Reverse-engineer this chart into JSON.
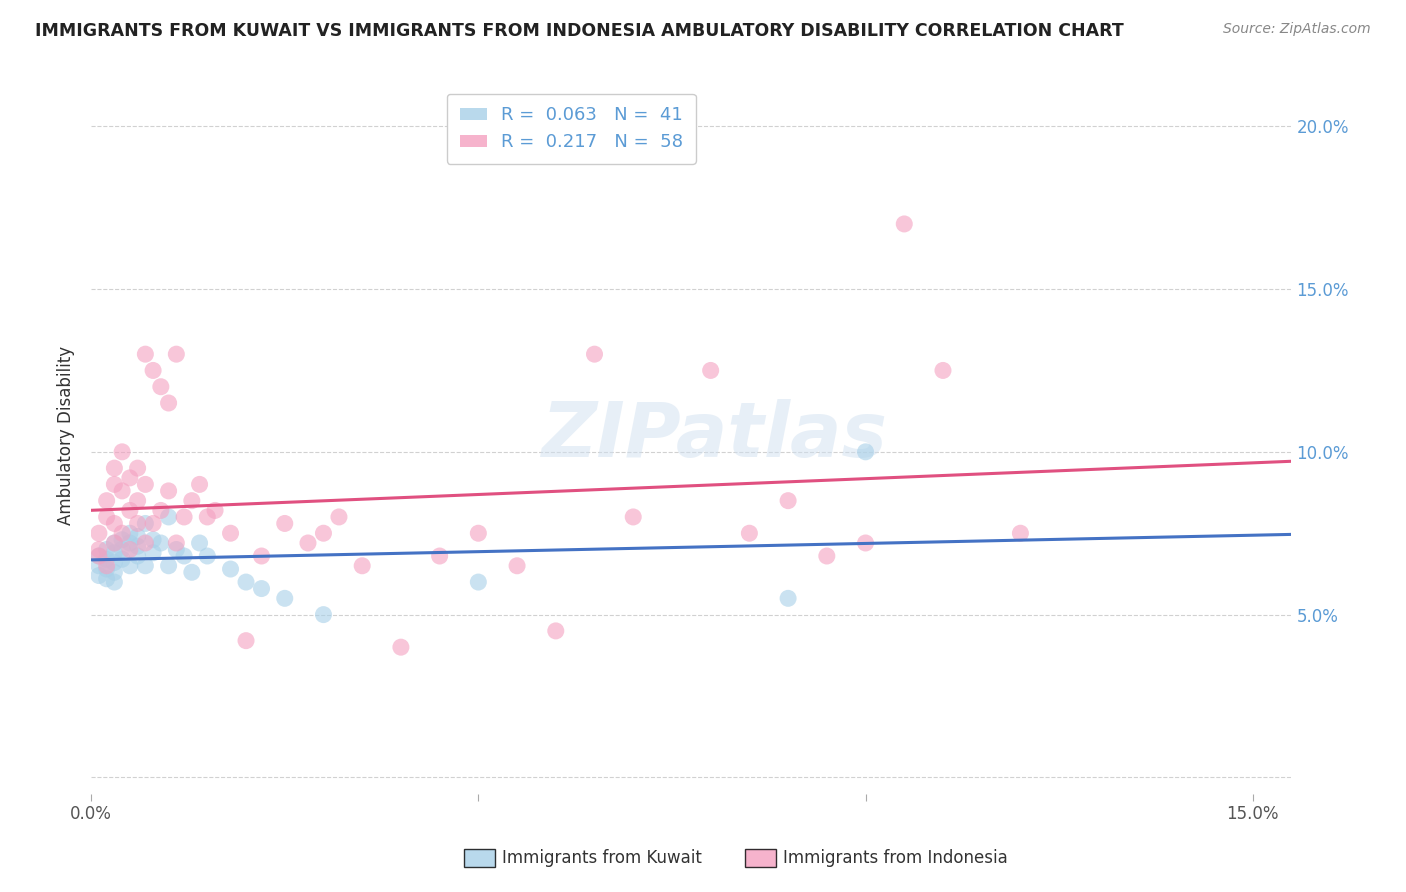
{
  "title": "IMMIGRANTS FROM KUWAIT VS IMMIGRANTS FROM INDONESIA AMBULATORY DISABILITY CORRELATION CHART",
  "source": "Source: ZipAtlas.com",
  "ylabel": "Ambulatory Disability",
  "xlim": [
    0.0,
    0.155
  ],
  "ylim": [
    -0.005,
    0.215
  ],
  "xticks": [
    0.0,
    0.05,
    0.1,
    0.15
  ],
  "xticklabels": [
    "0.0%",
    "",
    "",
    "15.0%"
  ],
  "yticks": [
    0.0,
    0.05,
    0.1,
    0.15,
    0.2
  ],
  "yticklabels_right": [
    "",
    "5.0%",
    "10.0%",
    "15.0%",
    "20.0%"
  ],
  "kuwait_R": 0.063,
  "kuwait_N": 41,
  "indonesia_R": 0.217,
  "indonesia_N": 58,
  "kuwait_color": "#a8d0e8",
  "indonesia_color": "#f4a0c0",
  "kuwait_line_color": "#4472c4",
  "indonesia_line_color": "#e05080",
  "watermark": "ZIPatlas",
  "legend_label_kuwait": "Immigrants from Kuwait",
  "legend_label_indonesia": "Immigrants from Indonesia",
  "tick_label_color": "#5b9bd5",
  "kuwait_x": [
    0.001,
    0.001,
    0.001,
    0.002,
    0.002,
    0.002,
    0.002,
    0.003,
    0.003,
    0.003,
    0.003,
    0.003,
    0.004,
    0.004,
    0.004,
    0.005,
    0.005,
    0.005,
    0.006,
    0.006,
    0.006,
    0.007,
    0.007,
    0.008,
    0.008,
    0.009,
    0.01,
    0.01,
    0.011,
    0.012,
    0.013,
    0.014,
    0.015,
    0.018,
    0.02,
    0.022,
    0.025,
    0.03,
    0.05,
    0.09,
    0.1
  ],
  "kuwait_y": [
    0.068,
    0.065,
    0.062,
    0.07,
    0.067,
    0.064,
    0.061,
    0.072,
    0.069,
    0.066,
    0.063,
    0.06,
    0.073,
    0.07,
    0.067,
    0.075,
    0.072,
    0.065,
    0.074,
    0.071,
    0.068,
    0.078,
    0.065,
    0.073,
    0.069,
    0.072,
    0.08,
    0.065,
    0.07,
    0.068,
    0.063,
    0.072,
    0.068,
    0.064,
    0.06,
    0.058,
    0.055,
    0.05,
    0.06,
    0.055,
    0.1
  ],
  "indonesia_x": [
    0.001,
    0.001,
    0.001,
    0.002,
    0.002,
    0.002,
    0.003,
    0.003,
    0.003,
    0.003,
    0.004,
    0.004,
    0.004,
    0.005,
    0.005,
    0.005,
    0.006,
    0.006,
    0.006,
    0.007,
    0.007,
    0.007,
    0.008,
    0.008,
    0.009,
    0.009,
    0.01,
    0.01,
    0.011,
    0.011,
    0.012,
    0.013,
    0.014,
    0.015,
    0.016,
    0.018,
    0.02,
    0.022,
    0.025,
    0.028,
    0.03,
    0.032,
    0.035,
    0.04,
    0.045,
    0.05,
    0.055,
    0.06,
    0.065,
    0.07,
    0.08,
    0.085,
    0.09,
    0.095,
    0.1,
    0.105,
    0.11,
    0.12
  ],
  "indonesia_y": [
    0.068,
    0.075,
    0.07,
    0.08,
    0.085,
    0.065,
    0.09,
    0.095,
    0.078,
    0.072,
    0.1,
    0.088,
    0.075,
    0.092,
    0.082,
    0.07,
    0.085,
    0.095,
    0.078,
    0.13,
    0.09,
    0.072,
    0.125,
    0.078,
    0.12,
    0.082,
    0.115,
    0.088,
    0.13,
    0.072,
    0.08,
    0.085,
    0.09,
    0.08,
    0.082,
    0.075,
    0.042,
    0.068,
    0.078,
    0.072,
    0.075,
    0.08,
    0.065,
    0.04,
    0.068,
    0.075,
    0.065,
    0.045,
    0.13,
    0.08,
    0.125,
    0.075,
    0.085,
    0.068,
    0.072,
    0.17,
    0.125,
    0.075
  ]
}
